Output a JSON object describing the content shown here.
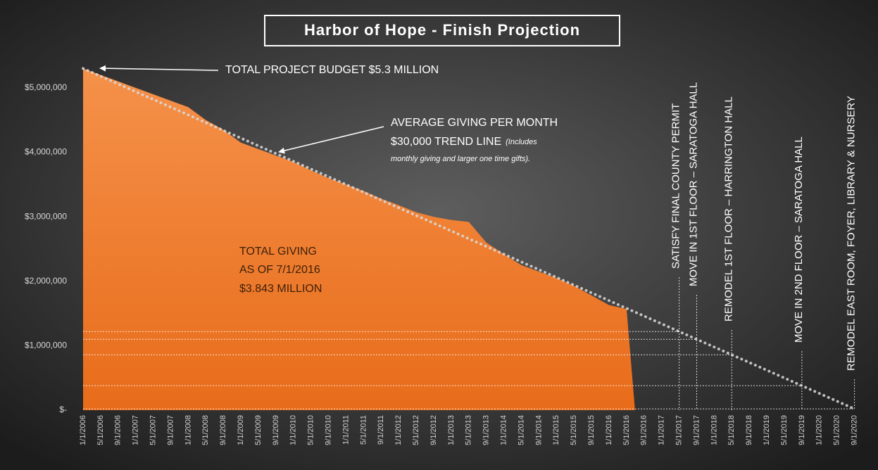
{
  "chart_data": {
    "type": "area",
    "title": "Harbor of Hope - Finish Projection",
    "categories": [
      "1/1/2006",
      "5/1/2006",
      "9/1/2006",
      "1/1/2007",
      "5/1/2007",
      "9/1/2007",
      "1/1/2008",
      "5/1/2008",
      "9/1/2008",
      "1/1/2009",
      "5/1/2009",
      "9/1/2009",
      "1/1/2010",
      "5/1/2010",
      "9/1/2010",
      "1/1/2011",
      "5/1/2011",
      "9/1/2011",
      "1/1/2012",
      "5/1/2012",
      "9/1/2012",
      "1/1/2013",
      "5/1/2013",
      "9/1/2013",
      "1/1/2014",
      "5/1/2014",
      "9/1/2014",
      "1/1/2015",
      "5/1/2015",
      "9/1/2015",
      "1/1/2016",
      "5/1/2016",
      "9/1/2016",
      "1/1/2017",
      "5/1/2017",
      "9/1/2017",
      "1/1/2018",
      "5/1/2018",
      "9/1/2018",
      "1/1/2019",
      "5/1/2019",
      "9/1/2019",
      "1/1/2020",
      "5/1/2020",
      "9/1/2020"
    ],
    "series": [
      {
        "type": "area",
        "color": "#f07d2c",
        "values": [
          5300000,
          5200000,
          5100000,
          5000000,
          4900000,
          4800000,
          4700000,
          4500000,
          4350000,
          4150000,
          4050000,
          3950000,
          3850000,
          3720000,
          3600000,
          3500000,
          3400000,
          3280000,
          3180000,
          3070000,
          3000000,
          2950000,
          2920000,
          2600000,
          2420000,
          2250000,
          2150000,
          2050000,
          1930000,
          1780000,
          1630000,
          1570000,
          null,
          null,
          null,
          null,
          null,
          null,
          null,
          null,
          null,
          null,
          null,
          null,
          null
        ]
      },
      {
        "type": "line",
        "color": "#d9d9d9",
        "values": [
          5300000,
          5180000,
          5060000,
          4940000,
          4820000,
          4700000,
          4580000,
          4460000,
          4340000,
          4220000,
          4100000,
          3980000,
          3860000,
          3740000,
          3620000,
          3500000,
          3380000,
          3260000,
          3140000,
          3020000,
          2900000,
          2780000,
          2660000,
          2540000,
          2420000,
          2300000,
          2180000,
          2060000,
          1940000,
          1820000,
          1700000,
          1580000,
          1460000,
          1340000,
          1220000,
          1100000,
          980000,
          860000,
          740000,
          620000,
          500000,
          380000,
          260000,
          140000,
          20000
        ]
      }
    ],
    "ylim": [
      0,
      5500000
    ],
    "yticks": [
      {
        "value": 0,
        "label": "$-"
      },
      {
        "value": 1000000,
        "label": "$1,000,000"
      },
      {
        "value": 2000000,
        "label": "$2,000,000"
      },
      {
        "value": 3000000,
        "label": "$3,000,000"
      },
      {
        "value": 4000000,
        "label": "$4,000,000"
      },
      {
        "value": 5000000,
        "label": "$5,000,000"
      }
    ],
    "annotations": {
      "budget": "TOTAL PROJECT BUDGET $5.3 MILLION",
      "trend_1": "AVERAGE GIVING PER MONTH",
      "trend_2": "$30,000 TREND LINE",
      "trend_3": "(Includes",
      "trend_4": "monthly giving and larger one time gifts).",
      "giving_1": "TOTAL GIVING",
      "giving_2": "AS OF 7/1/2016",
      "giving_3": "$3.843 MILLION"
    },
    "milestones": [
      {
        "label": "SATISFY  FINAL COUNTY PERMIT",
        "category": "5/1/2017",
        "value": 1220000
      },
      {
        "label": "MOVE IN 1ST FLOOR – SARATOGA HALL",
        "category": "9/1/2017",
        "value": 1100000
      },
      {
        "label": "REMODEL 1ST FLOOR – HARRINGTON HALL",
        "category": "5/1/2018",
        "value": 860000
      },
      {
        "label": "MOVE IN  2ND FLOOR – SARATOGA HALL",
        "category": "9/1/2019",
        "value": 380000
      },
      {
        "label": "REMODEL EAST ROOM, FOYER, LIBRARY & NURSERY",
        "category": "9/1/2020",
        "value": 20000
      }
    ]
  }
}
